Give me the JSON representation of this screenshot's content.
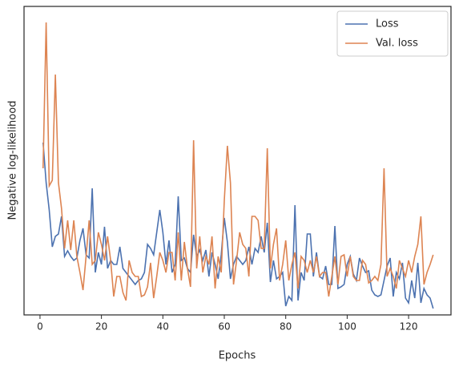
{
  "chart_data": {
    "type": "line",
    "xlabel": "Epochs",
    "ylabel": "Negative log-likelihood",
    "x": [
      1,
      2,
      3,
      4,
      5,
      6,
      7,
      8,
      9,
      10,
      11,
      12,
      13,
      14,
      15,
      16,
      17,
      18,
      19,
      20,
      21,
      22,
      23,
      24,
      25,
      26,
      27,
      28,
      29,
      30,
      31,
      32,
      33,
      34,
      35,
      36,
      37,
      38,
      39,
      40,
      41,
      42,
      43,
      44,
      45,
      46,
      47,
      48,
      49,
      50,
      51,
      52,
      53,
      54,
      55,
      56,
      57,
      58,
      59,
      60,
      61,
      62,
      63,
      64,
      65,
      66,
      67,
      68,
      69,
      70,
      71,
      72,
      73,
      74,
      75,
      76,
      77,
      78,
      79,
      80,
      81,
      82,
      83,
      84,
      85,
      86,
      87,
      88,
      89,
      90,
      91,
      92,
      93,
      94,
      95,
      96,
      97,
      98,
      99,
      100,
      101,
      102,
      103,
      104,
      105,
      106,
      107,
      108,
      109,
      110,
      111,
      112,
      113,
      114,
      115,
      116,
      117,
      118,
      119,
      120,
      121,
      122,
      123,
      124,
      125,
      126,
      127,
      128
    ],
    "series": [
      {
        "name": "Loss",
        "color": "#4c72b0",
        "values": [
          215,
          165,
          131,
          85,
          98,
          101,
          123,
          73,
          80,
          73,
          68,
          71,
          93,
          108,
          75,
          71,
          158,
          53,
          78,
          63,
          110,
          58,
          68,
          63,
          63,
          85,
          58,
          53,
          48,
          43,
          38,
          43,
          45,
          53,
          88,
          83,
          75,
          103,
          131,
          103,
          63,
          93,
          53,
          63,
          148,
          68,
          71,
          58,
          53,
          100,
          73,
          81,
          68,
          81,
          48,
          78,
          63,
          45,
          75,
          121,
          91,
          45,
          63,
          73,
          68,
          63,
          68,
          85,
          63,
          83,
          78,
          98,
          78,
          115,
          41,
          68,
          45,
          48,
          53,
          11,
          23,
          18,
          137,
          18,
          53,
          43,
          101,
          101,
          48,
          78,
          48,
          45,
          61,
          38,
          38,
          111,
          33,
          35,
          38,
          63,
          73,
          51,
          43,
          71,
          61,
          53,
          55,
          31,
          25,
          23,
          25,
          43,
          61,
          71,
          23,
          53,
          45,
          65,
          21,
          15,
          43,
          21,
          65,
          15,
          33,
          25,
          21,
          8
        ]
      },
      {
        "name": "Val. loss",
        "color": "#dd8452",
        "values": [
          183,
          365,
          161,
          168,
          300,
          165,
          133,
          83,
          118,
          81,
          118,
          73,
          53,
          31,
          73,
          118,
          63,
          68,
          103,
          88,
          68,
          98,
          68,
          23,
          48,
          48,
          28,
          18,
          68,
          53,
          48,
          48,
          23,
          25,
          35,
          65,
          21,
          48,
          78,
          68,
          53,
          78,
          78,
          43,
          103,
          43,
          91,
          58,
          35,
          218,
          58,
          98,
          53,
          73,
          63,
          98,
          33,
          73,
          53,
          143,
          211,
          165,
          38,
          68,
          103,
          88,
          83,
          48,
          123,
          123,
          118,
          83,
          83,
          208,
          58,
          88,
          108,
          43,
          63,
          93,
          43,
          63,
          78,
          33,
          73,
          68,
          53,
          68,
          53,
          73,
          48,
          53,
          53,
          23,
          48,
          73,
          38,
          73,
          75,
          48,
          73,
          48,
          43,
          43,
          68,
          63,
          40,
          43,
          48,
          43,
          63,
          183,
          48,
          58,
          48,
          33,
          68,
          58,
          48,
          68,
          53,
          73,
          88,
          123,
          38,
          53,
          63,
          75
        ]
      }
    ],
    "xlim": [
      -5.2,
      133.8
    ],
    "ylim": [
      0,
      385
    ],
    "xticks": [
      0,
      20,
      40,
      60,
      80,
      100,
      120
    ],
    "legend": "upper right"
  }
}
